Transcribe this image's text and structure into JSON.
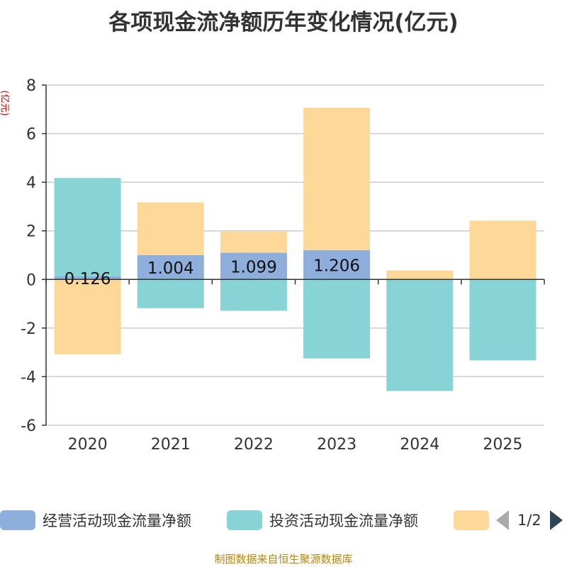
{
  "title": "各项现金流净额历年变化情况(亿元)",
  "unit": "(亿元)",
  "footer": "制图数据来自恒生聚源数据库",
  "legend": {
    "items": [
      {
        "label": "经营活动现金流量净额",
        "color": "#8eaedb"
      },
      {
        "label": "投资活动现金流量净额",
        "color": "#87d3d6"
      },
      {
        "label": "",
        "color": "#fed898"
      }
    ],
    "page": "1/2"
  },
  "chart_data": {
    "type": "bar",
    "stacked": true,
    "categories": [
      "2020",
      "2021",
      "2022",
      "2023",
      "2024",
      "2025"
    ],
    "series": [
      {
        "name": "经营活动现金流量净额",
        "color": "#8eaedb",
        "values": [
          0.126,
          1.004,
          1.099,
          1.206,
          -0.01,
          -0.01
        ],
        "labels": [
          "0.126",
          "1.004",
          "1.099",
          "1.206",
          "",
          ""
        ]
      },
      {
        "name": "投资活动现金流量净额",
        "color": "#87d3d6",
        "values": [
          4.05,
          -1.18,
          -1.29,
          -3.25,
          -4.58,
          -3.32
        ]
      },
      {
        "name": "",
        "color": "#fed898",
        "values": [
          -3.08,
          2.17,
          0.87,
          5.86,
          0.37,
          2.42
        ]
      }
    ],
    "ylim": [
      -6,
      8
    ],
    "yticks": [
      -6,
      -4,
      -2,
      0,
      2,
      4,
      6,
      8
    ],
    "grid": true,
    "legend_position": "bottom"
  }
}
